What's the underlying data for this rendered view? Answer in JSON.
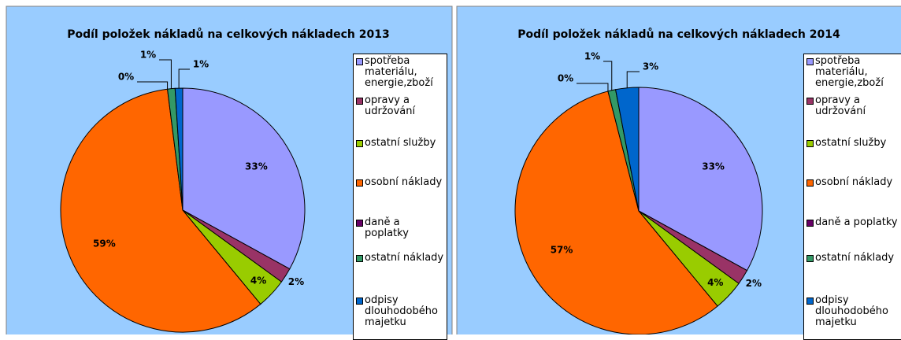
{
  "chart_data": [
    {
      "type": "pie",
      "title": "Podíl položek nákladů na celkových nákladech 2013",
      "categories": [
        "spotřeba materiálu, energie,zboží",
        "opravy a udržování",
        "ostatní služby",
        "osobní náklady",
        "daně a poplatky",
        "ostatní náklady",
        "odpisy dlouhodobého majetku"
      ],
      "values": [
        33,
        2,
        4,
        59,
        0,
        1,
        1
      ],
      "value_labels": [
        "33%",
        "2%",
        "4%",
        "59%",
        "0%",
        "1%",
        "1%"
      ],
      "colors": [
        "#9999ff",
        "#993366",
        "#99cc00",
        "#ff6600",
        "#660066",
        "#339966",
        "#0066cc"
      ]
    },
    {
      "type": "pie",
      "title": "Podíl položek nákladů na celkových nákladech 2014",
      "categories": [
        "spotřeba materiálu, energie,zboží",
        "opravy a udržování",
        "ostatní služby",
        "osobní náklady",
        "daně a poplatky",
        "ostatní náklady",
        "odpisy dlouhodobého majetku"
      ],
      "values": [
        33,
        2,
        4,
        57,
        0,
        1,
        3
      ],
      "value_labels": [
        "33%",
        "2%",
        "4%",
        "57%",
        "0%",
        "1%",
        "3%"
      ],
      "colors": [
        "#9999ff",
        "#993366",
        "#99cc00",
        "#ff6600",
        "#660066",
        "#339966",
        "#0066cc"
      ]
    }
  ]
}
